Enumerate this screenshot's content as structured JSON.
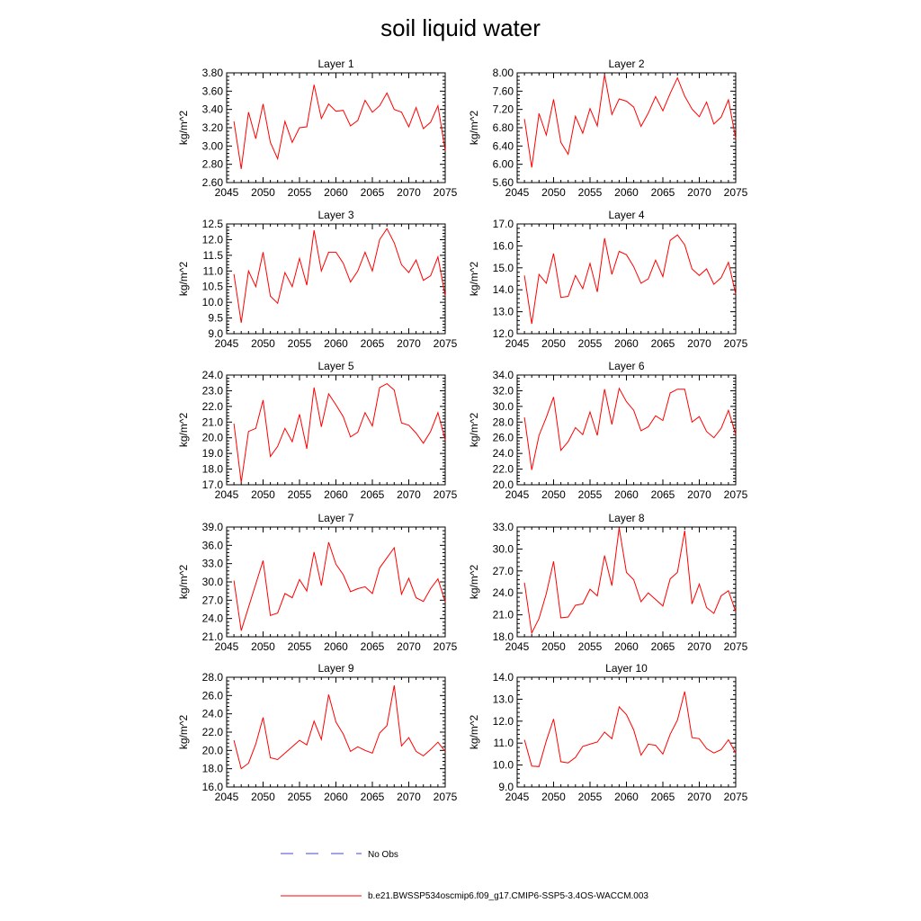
{
  "title": "soil liquid water",
  "chart_data": [
    {
      "type": "line",
      "title": "Layer 1",
      "ylabel": "kg/m^2",
      "xlim": [
        2045,
        2075
      ],
      "ylim": [
        2.6,
        3.8
      ],
      "yticks": [
        "2.60",
        "2.80",
        "3.00",
        "3.20",
        "3.40",
        "3.60",
        "3.80"
      ],
      "xticks": [
        "2045",
        "2050",
        "2055",
        "2060",
        "2065",
        "2070",
        "2075"
      ],
      "series": [
        {
          "name": "b.e21.BWSSP534oscmip6.f09_g17.CMIP6-SSP5-3.4OS-WACCM.003",
          "color": "#ff0000",
          "x": [
            2046,
            2047,
            2048,
            2049,
            2050,
            2051,
            2052,
            2053,
            2054,
            2055,
            2056,
            2057,
            2058,
            2059,
            2060,
            2061,
            2062,
            2063,
            2064,
            2065,
            2066,
            2067,
            2068,
            2069,
            2070,
            2071,
            2072,
            2073,
            2074,
            2075
          ],
          "values": [
            3.27,
            2.75,
            3.37,
            3.08,
            3.46,
            3.04,
            2.86,
            3.27,
            3.04,
            3.2,
            3.21,
            3.67,
            3.3,
            3.46,
            3.38,
            3.39,
            3.22,
            3.28,
            3.5,
            3.37,
            3.44,
            3.58,
            3.4,
            3.37,
            3.21,
            3.42,
            3.19,
            3.26,
            3.44,
            2.95
          ]
        }
      ]
    },
    {
      "type": "line",
      "title": "Layer 2",
      "ylabel": "kg/m^2",
      "xlim": [
        2045,
        2075
      ],
      "ylim": [
        5.6,
        8.0
      ],
      "yticks": [
        "5.60",
        "6.00",
        "6.40",
        "6.80",
        "7.20",
        "7.60",
        "8.00"
      ],
      "xticks": [
        "2045",
        "2050",
        "2055",
        "2060",
        "2065",
        "2070",
        "2075"
      ],
      "series": [
        {
          "name": "b.e21.BWSSP534oscmip6.f09_g17.CMIP6-SSP5-3.4OS-WACCM.003",
          "color": "#ff0000",
          "x": [
            2046,
            2047,
            2048,
            2049,
            2050,
            2051,
            2052,
            2053,
            2054,
            2055,
            2056,
            2057,
            2058,
            2059,
            2060,
            2061,
            2062,
            2063,
            2064,
            2065,
            2066,
            2067,
            2068,
            2069,
            2070,
            2071,
            2072,
            2073,
            2074,
            2075
          ],
          "values": [
            6.99,
            5.93,
            7.11,
            6.64,
            7.42,
            6.48,
            6.22,
            7.05,
            6.68,
            7.22,
            6.84,
            7.96,
            7.09,
            7.43,
            7.38,
            7.25,
            6.83,
            7.12,
            7.48,
            7.17,
            7.55,
            7.89,
            7.49,
            7.21,
            7.04,
            7.36,
            6.88,
            7.03,
            7.41,
            6.56
          ]
        }
      ]
    },
    {
      "type": "line",
      "title": "Layer 3",
      "ylabel": "kg/m^2",
      "xlim": [
        2045,
        2075
      ],
      "ylim": [
        9.0,
        12.5
      ],
      "yticks": [
        "9.0",
        "9.5",
        "10.0",
        "10.5",
        "11.0",
        "11.5",
        "12.0",
        "12.5"
      ],
      "xticks": [
        "2045",
        "2050",
        "2055",
        "2060",
        "2065",
        "2070",
        "2075"
      ],
      "series": [
        {
          "name": "b.e21.BWSSP534oscmip6.f09_g17.CMIP6-SSP5-3.4OS-WACCM.003",
          "color": "#ff0000",
          "x": [
            2046,
            2047,
            2048,
            2049,
            2050,
            2051,
            2052,
            2053,
            2054,
            2055,
            2056,
            2057,
            2058,
            2059,
            2060,
            2061,
            2062,
            2063,
            2064,
            2065,
            2066,
            2067,
            2068,
            2069,
            2070,
            2071,
            2072,
            2073,
            2074,
            2075
          ],
          "values": [
            10.9,
            9.35,
            11.0,
            10.5,
            11.6,
            10.2,
            9.97,
            10.95,
            10.5,
            11.4,
            10.55,
            12.3,
            11.0,
            11.6,
            11.6,
            11.25,
            10.65,
            11.0,
            11.6,
            11.0,
            12.0,
            12.35,
            11.9,
            11.2,
            10.95,
            11.35,
            10.7,
            10.85,
            11.45,
            10.2
          ]
        }
      ]
    },
    {
      "type": "line",
      "title": "Layer 4",
      "ylabel": "kg/m^2",
      "xlim": [
        2045,
        2075
      ],
      "ylim": [
        12.0,
        17.0
      ],
      "yticks": [
        "12.0",
        "13.0",
        "14.0",
        "15.0",
        "16.0",
        "17.0"
      ],
      "xticks": [
        "2045",
        "2050",
        "2055",
        "2060",
        "2065",
        "2070",
        "2075"
      ],
      "series": [
        {
          "name": "b.e21.BWSSP534oscmip6.f09_g17.CMIP6-SSP5-3.4OS-WACCM.003",
          "color": "#ff0000",
          "x": [
            2046,
            2047,
            2048,
            2049,
            2050,
            2051,
            2052,
            2053,
            2054,
            2055,
            2056,
            2057,
            2058,
            2059,
            2060,
            2061,
            2062,
            2063,
            2064,
            2065,
            2066,
            2067,
            2068,
            2069,
            2070,
            2071,
            2072,
            2073,
            2074,
            2075
          ],
          "values": [
            14.65,
            12.45,
            14.7,
            14.3,
            15.65,
            13.65,
            13.7,
            14.65,
            14.05,
            15.2,
            13.9,
            16.35,
            14.7,
            15.75,
            15.6,
            15.05,
            14.3,
            14.5,
            15.35,
            14.6,
            16.25,
            16.5,
            16.05,
            14.95,
            14.65,
            14.95,
            14.25,
            14.55,
            15.25,
            13.8
          ]
        }
      ]
    },
    {
      "type": "line",
      "title": "Layer 5",
      "ylabel": "kg/m^2",
      "xlim": [
        2045,
        2075
      ],
      "ylim": [
        17.0,
        24.0
      ],
      "yticks": [
        "17.0",
        "18.0",
        "19.0",
        "20.0",
        "21.0",
        "22.0",
        "23.0",
        "24.0"
      ],
      "xticks": [
        "2045",
        "2050",
        "2055",
        "2060",
        "2065",
        "2070",
        "2075"
      ],
      "series": [
        {
          "name": "b.e21.BWSSP534oscmip6.f09_g17.CMIP6-SSP5-3.4OS-WACCM.003",
          "color": "#ff0000",
          "x": [
            2046,
            2047,
            2048,
            2049,
            2050,
            2051,
            2052,
            2053,
            2054,
            2055,
            2056,
            2057,
            2058,
            2059,
            2060,
            2061,
            2062,
            2063,
            2064,
            2065,
            2066,
            2067,
            2068,
            2069,
            2070,
            2071,
            2072,
            2073,
            2074,
            2075
          ],
          "values": [
            20.9,
            17.15,
            20.4,
            20.6,
            22.4,
            18.8,
            19.45,
            20.6,
            19.75,
            21.5,
            19.3,
            23.2,
            20.7,
            22.8,
            22.1,
            21.35,
            20.05,
            20.35,
            21.6,
            20.75,
            23.2,
            23.45,
            23.05,
            20.95,
            20.8,
            20.3,
            19.65,
            20.4,
            21.6,
            19.85
          ]
        }
      ]
    },
    {
      "type": "line",
      "title": "Layer 6",
      "ylabel": "kg/m^2",
      "xlim": [
        2045,
        2075
      ],
      "ylim": [
        20.0,
        34.0
      ],
      "yticks": [
        "20.0",
        "22.0",
        "24.0",
        "26.0",
        "28.0",
        "30.0",
        "32.0",
        "34.0"
      ],
      "xticks": [
        "2045",
        "2050",
        "2055",
        "2060",
        "2065",
        "2070",
        "2075"
      ],
      "series": [
        {
          "name": "b.e21.BWSSP534oscmip6.f09_g17.CMIP6-SSP5-3.4OS-WACCM.003",
          "color": "#ff0000",
          "x": [
            2046,
            2047,
            2048,
            2049,
            2050,
            2051,
            2052,
            2053,
            2054,
            2055,
            2056,
            2057,
            2058,
            2059,
            2060,
            2061,
            2062,
            2063,
            2064,
            2065,
            2066,
            2067,
            2068,
            2069,
            2070,
            2071,
            2072,
            2073,
            2074,
            2075
          ],
          "values": [
            28.6,
            21.9,
            26.3,
            28.6,
            31.2,
            24.4,
            25.5,
            27.3,
            26.4,
            29.3,
            26.3,
            32.2,
            27.7,
            32.3,
            30.6,
            29.5,
            26.9,
            27.4,
            28.8,
            28.2,
            31.7,
            32.2,
            32.2,
            28.0,
            28.7,
            26.8,
            26.0,
            27.2,
            29.5,
            26.4
          ]
        }
      ]
    },
    {
      "type": "line",
      "title": "Layer 7",
      "ylabel": "kg/m^2",
      "xlim": [
        2045,
        2075
      ],
      "ylim": [
        21.0,
        39.0
      ],
      "yticks": [
        "21.0",
        "24.0",
        "27.0",
        "30.0",
        "33.0",
        "36.0",
        "39.0"
      ],
      "xticks": [
        "2045",
        "2050",
        "2055",
        "2060",
        "2065",
        "2070",
        "2075"
      ],
      "series": [
        {
          "name": "b.e21.BWSSP534oscmip6.f09_g17.CMIP6-SSP5-3.4OS-WACCM.003",
          "color": "#ff0000",
          "x": [
            2046,
            2047,
            2048,
            2049,
            2050,
            2051,
            2052,
            2053,
            2054,
            2055,
            2056,
            2057,
            2058,
            2059,
            2060,
            2061,
            2062,
            2063,
            2064,
            2065,
            2066,
            2067,
            2068,
            2069,
            2070,
            2071,
            2072,
            2073,
            2074,
            2075
          ],
          "values": [
            30.2,
            22.0,
            null,
            null,
            33.5,
            24.5,
            24.9,
            28.1,
            27.4,
            30.4,
            28.5,
            34.9,
            29.4,
            36.5,
            32.9,
            31.2,
            28.4,
            28.9,
            29.2,
            28.1,
            32.3,
            null,
            35.6,
            28.0,
            30.6,
            27.4,
            26.8,
            28.9,
            30.5,
            26.7
          ]
        }
      ]
    },
    {
      "type": "line",
      "title": "Layer 8",
      "ylabel": "kg/m^2",
      "xlim": [
        2045,
        2075
      ],
      "ylim": [
        18.0,
        33.0
      ],
      "yticks": [
        "18.0",
        "21.0",
        "24.0",
        "27.0",
        "30.0",
        "33.0"
      ],
      "xticks": [
        "2045",
        "2050",
        "2055",
        "2060",
        "2065",
        "2070",
        "2075"
      ],
      "series": [
        {
          "name": "b.e21.BWSSP534oscmip6.f09_g17.CMIP6-SSP5-3.4OS-WACCM.003",
          "color": "#ff0000",
          "x": [
            2046,
            2047,
            2048,
            2049,
            2050,
            2051,
            2052,
            2053,
            2054,
            2055,
            2056,
            2057,
            2058,
            2059,
            2060,
            2061,
            2062,
            2063,
            2064,
            2065,
            2066,
            2067,
            2068,
            2069,
            2070,
            2071,
            2072,
            2073,
            2074,
            2075
          ],
          "values": [
            25.4,
            18.5,
            20.5,
            23.9,
            28.3,
            20.6,
            20.7,
            22.3,
            22.5,
            24.5,
            23.6,
            29.1,
            25.0,
            32.9,
            26.8,
            25.8,
            22.8,
            24.0,
            23.1,
            22.2,
            25.9,
            26.8,
            32.5,
            22.5,
            25.2,
            22.0,
            21.2,
            23.6,
            24.3,
            21.4
          ]
        }
      ]
    },
    {
      "type": "line",
      "title": "Layer 9",
      "ylabel": "kg/m^2",
      "xlim": [
        2045,
        2075
      ],
      "ylim": [
        16.0,
        28.0
      ],
      "yticks": [
        "16.0",
        "18.0",
        "20.0",
        "22.0",
        "24.0",
        "26.0",
        "28.0"
      ],
      "xticks": [
        "2045",
        "2050",
        "2055",
        "2060",
        "2065",
        "2070",
        "2075"
      ],
      "series": [
        {
          "name": "b.e21.BWSSP534oscmip6.f09_g17.CMIP6-SSP5-3.4OS-WACCM.003",
          "color": "#ff0000",
          "x": [
            2046,
            2047,
            2048,
            2049,
            2050,
            2051,
            2052,
            2053,
            2054,
            2055,
            2056,
            2057,
            2058,
            2059,
            2060,
            2061,
            2062,
            2063,
            2064,
            2065,
            2066,
            2067,
            2068,
            2069,
            2070,
            2071,
            2072,
            2073,
            2074,
            2075
          ],
          "values": [
            21.1,
            18.0,
            18.6,
            20.7,
            23.6,
            19.2,
            19.0,
            19.7,
            20.4,
            21.1,
            20.6,
            23.2,
            21.2,
            26.1,
            23.1,
            21.8,
            19.9,
            20.4,
            20.0,
            19.7,
            21.9,
            22.7,
            27.1,
            20.5,
            21.4,
            19.9,
            19.4,
            20.1,
            20.9,
            19.9
          ]
        }
      ]
    },
    {
      "type": "line",
      "title": "Layer 10",
      "ylabel": "kg/m^2",
      "xlim": [
        2045,
        2075
      ],
      "ylim": [
        9.0,
        14.0
      ],
      "yticks": [
        "9.0",
        "10.0",
        "11.0",
        "12.0",
        "13.0",
        "14.0"
      ],
      "xticks": [
        "2045",
        "2050",
        "2055",
        "2060",
        "2065",
        "2070",
        "2075"
      ],
      "series": [
        {
          "name": "b.e21.BWSSP534oscmip6.f09_g17.CMIP6-SSP5-3.4OS-WACCM.003",
          "color": "#ff0000",
          "x": [
            2046,
            2047,
            2048,
            2049,
            2050,
            2051,
            2052,
            2053,
            2054,
            2055,
            2056,
            2057,
            2058,
            2059,
            2060,
            2061,
            2062,
            2063,
            2064,
            2065,
            2066,
            2067,
            2068,
            2069,
            2070,
            2071,
            2072,
            2073,
            2074,
            2075
          ],
          "values": [
            11.15,
            9.95,
            9.93,
            11.1,
            12.1,
            10.15,
            10.1,
            10.35,
            10.85,
            10.95,
            11.05,
            11.5,
            11.2,
            12.65,
            12.3,
            11.6,
            10.45,
            10.95,
            10.9,
            10.5,
            11.4,
            12.05,
            13.35,
            11.25,
            11.2,
            10.75,
            10.55,
            10.7,
            11.15,
            10.55
          ]
        }
      ]
    }
  ],
  "legend": [
    {
      "label": "No Obs",
      "color": "#4444cc",
      "style": "dashed"
    },
    {
      "label": "b.e21.BWSSP534oscmip6.f09_g17.CMIP6-SSP5-3.4OS-WACCM.003",
      "color": "#ff0000",
      "style": "solid"
    }
  ]
}
